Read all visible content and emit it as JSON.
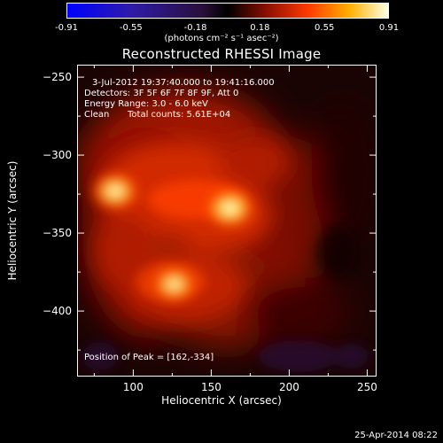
{
  "chart_data": {
    "type": "heatmap",
    "title": "Reconstructed RHESSI Image",
    "xlabel": "Heliocentric X (arcsec)",
    "ylabel": "Heliocentric Y (arcsec)",
    "xlim": [
      64,
      256
    ],
    "ylim": [
      -442,
      -242
    ],
    "x_ticks": [
      100,
      150,
      200,
      250
    ],
    "y_ticks": [
      -250,
      -300,
      -350,
      -400
    ],
    "colorbar": {
      "range": [
        -0.91,
        0.91
      ],
      "ticks": [
        "-0.91",
        "-0.55",
        "-0.18",
        "0.18",
        "0.55",
        "0.91"
      ],
      "units": "(photons cm⁻² s⁻¹ asec⁻²)"
    },
    "annotations": {
      "time_range": "3-Jul-2012 19:37:40.000 to 19:41:16.000",
      "detectors": "Detectors: 3F 5F 6F 7F 8F 9F, Att 0",
      "energy_range": "Energy Range: 3.0 - 6.0 keV",
      "method": "Clean",
      "total_counts": "Total counts: 5.61E+04",
      "peak": "Position of Peak = [162,-334]"
    },
    "sources": [
      {
        "x": 162,
        "y": -334,
        "peak": 0.91
      },
      {
        "x": 88,
        "y": -323,
        "peak": 0.8
      },
      {
        "x": 126,
        "y": -383,
        "peak": 0.7
      }
    ]
  },
  "footer": {
    "date": "25-Apr-2014 08:22"
  }
}
